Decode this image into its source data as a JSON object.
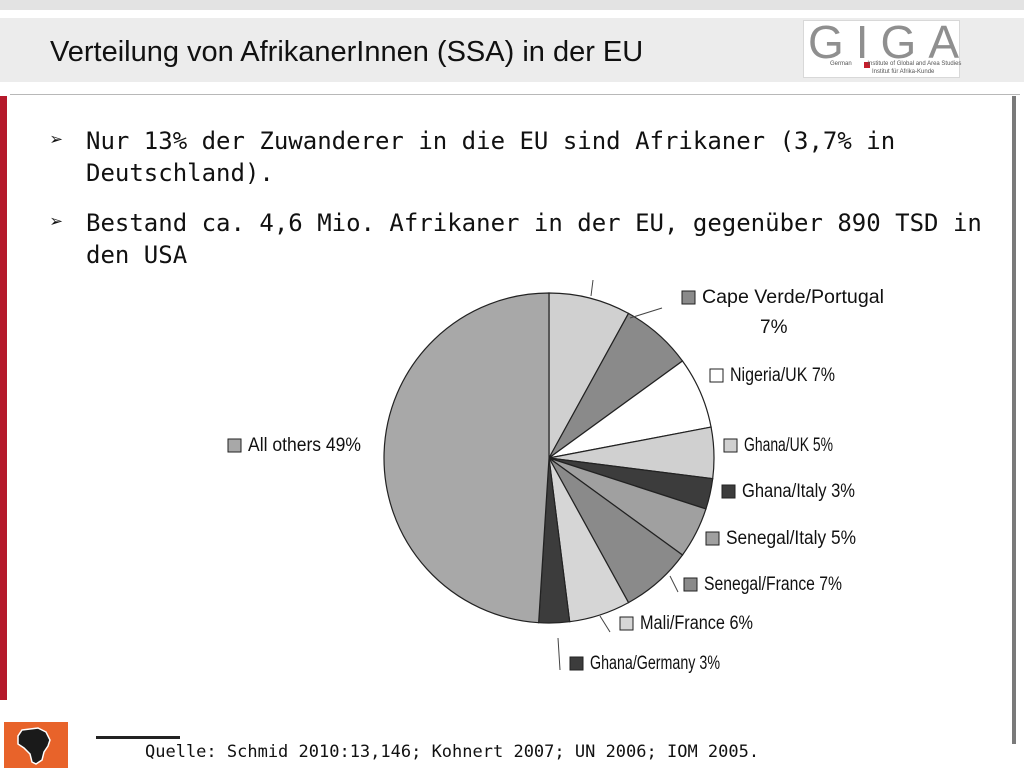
{
  "slide": {
    "title": "Verteilung von AfrikanerInnen (SSA) in der EU",
    "logo": {
      "word": "GIGA",
      "line1": "German",
      "line1b": "Institute of Global and Area Studies",
      "line2": "Institut für Afrika-Kunde"
    },
    "bullets": [
      "Nur 13% der Zuwanderer in die EU sind Afrikaner (3,7% in Deutschland).",
      "Bestand ca. 4,6 Mio. Afrikaner in der EU, gegenüber 890 TSD in den USA"
    ],
    "bullet_glyph": "➢",
    "source": "Quelle: Schmid 2010:13,146; Kohnert 2007; UN 2006; IOM 2005."
  },
  "colors": {
    "accent_red": "#b5192b",
    "header_band": "#ececec",
    "footer_icon": "#e8632a"
  },
  "chart_data": {
    "type": "pie",
    "title": "",
    "start_angle_deg": 0,
    "direction": "clockwise",
    "slices": [
      {
        "label": "",
        "value": 8,
        "color": "#d0d0d0"
      },
      {
        "label": "Cape Verde/Portugal 7%",
        "value": 7,
        "color": "#8a8a8a"
      },
      {
        "label": "Nigeria/UK 7%",
        "value": 7,
        "color": "#ffffff"
      },
      {
        "label": "Ghana/UK 5%",
        "value": 5,
        "color": "#d0d0d0"
      },
      {
        "label": "Ghana/Italy 3%",
        "value": 3,
        "color": "#3c3c3c"
      },
      {
        "label": "Senegal/Italy 5%",
        "value": 5,
        "color": "#a0a0a0"
      },
      {
        "label": "Senegal/France 7%",
        "value": 7,
        "color": "#8a8a8a"
      },
      {
        "label": "Mali/France 6%",
        "value": 6,
        "color": "#d6d6d6"
      },
      {
        "label": "Ghana/Germany 3%",
        "value": 3,
        "color": "#3c3c3c"
      },
      {
        "label": "All others 49%",
        "value": 49,
        "color": "#a8a8a8"
      }
    ],
    "legend": "labels beside slices"
  }
}
